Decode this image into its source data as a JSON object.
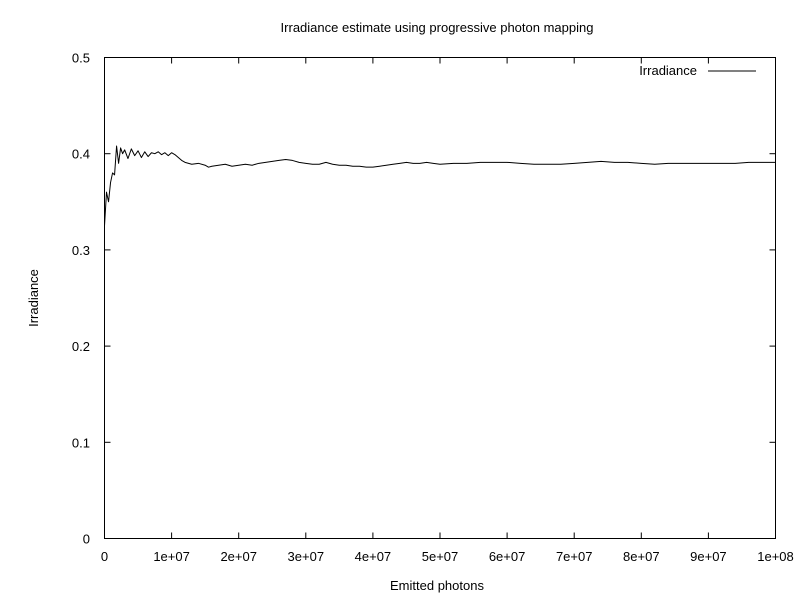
{
  "chart_data": {
    "type": "line",
    "title": "Irradiance estimate using progressive photon mapping",
    "xlabel": "Emitted photons",
    "ylabel": "Irradiance",
    "xlim": [
      0,
      100000000
    ],
    "ylim": [
      0,
      0.5
    ],
    "grid": false,
    "legend": {
      "position": "top-right",
      "entries": [
        "Irradiance"
      ]
    },
    "x_ticks": [
      {
        "value": 0,
        "label": "0"
      },
      {
        "value": 10000000,
        "label": "1e+07"
      },
      {
        "value": 20000000,
        "label": "2e+07"
      },
      {
        "value": 30000000,
        "label": "3e+07"
      },
      {
        "value": 40000000,
        "label": "4e+07"
      },
      {
        "value": 50000000,
        "label": "5e+07"
      },
      {
        "value": 60000000,
        "label": "6e+07"
      },
      {
        "value": 70000000,
        "label": "7e+07"
      },
      {
        "value": 80000000,
        "label": "8e+07"
      },
      {
        "value": 90000000,
        "label": "9e+07"
      },
      {
        "value": 100000000,
        "label": "1e+08"
      }
    ],
    "y_ticks": [
      {
        "value": 0,
        "label": "0"
      },
      {
        "value": 0.1,
        "label": "0.1"
      },
      {
        "value": 0.2,
        "label": "0.2"
      },
      {
        "value": 0.3,
        "label": "0.3"
      },
      {
        "value": 0.4,
        "label": "0.4"
      },
      {
        "value": 0.5,
        "label": "0.5"
      }
    ],
    "series": [
      {
        "name": "Irradiance",
        "color": "#000000",
        "x": [
          0,
          300000,
          600000,
          900000,
          1200000,
          1500000,
          1800000,
          2100000,
          2400000,
          2700000,
          3000000,
          3500000,
          4000000,
          4500000,
          5000000,
          5500000,
          6000000,
          6500000,
          7000000,
          7500000,
          8000000,
          8500000,
          9000000,
          9500000,
          10000000,
          10500000,
          11000000,
          11500000,
          12000000,
          13000000,
          14000000,
          15000000,
          15500000,
          16000000,
          17000000,
          18000000,
          19000000,
          20000000,
          21000000,
          22000000,
          23000000,
          24000000,
          25000000,
          26000000,
          27000000,
          28000000,
          29000000,
          30000000,
          31000000,
          32000000,
          33000000,
          34000000,
          35000000,
          36000000,
          37000000,
          38000000,
          39000000,
          40000000,
          41000000,
          42000000,
          43000000,
          44000000,
          45000000,
          46000000,
          47000000,
          48000000,
          49000000,
          50000000,
          52000000,
          54000000,
          56000000,
          58000000,
          60000000,
          62000000,
          64000000,
          66000000,
          68000000,
          70000000,
          72000000,
          74000000,
          76000000,
          78000000,
          80000000,
          82000000,
          84000000,
          86000000,
          88000000,
          90000000,
          92000000,
          94000000,
          96000000,
          98000000,
          100000000
        ],
        "values": [
          0.325,
          0.36,
          0.35,
          0.37,
          0.38,
          0.378,
          0.408,
          0.39,
          0.406,
          0.4,
          0.404,
          0.395,
          0.405,
          0.398,
          0.403,
          0.396,
          0.402,
          0.397,
          0.401,
          0.4,
          0.402,
          0.399,
          0.401,
          0.398,
          0.401,
          0.399,
          0.396,
          0.393,
          0.391,
          0.389,
          0.39,
          0.388,
          0.386,
          0.387,
          0.388,
          0.389,
          0.387,
          0.388,
          0.389,
          0.388,
          0.39,
          0.391,
          0.392,
          0.393,
          0.394,
          0.393,
          0.391,
          0.39,
          0.389,
          0.389,
          0.391,
          0.389,
          0.388,
          0.388,
          0.387,
          0.387,
          0.386,
          0.386,
          0.387,
          0.388,
          0.389,
          0.39,
          0.391,
          0.39,
          0.39,
          0.391,
          0.39,
          0.389,
          0.39,
          0.39,
          0.391,
          0.391,
          0.391,
          0.39,
          0.389,
          0.389,
          0.389,
          0.39,
          0.391,
          0.392,
          0.391,
          0.391,
          0.39,
          0.389,
          0.39,
          0.39,
          0.39,
          0.39,
          0.39,
          0.39,
          0.391,
          0.391,
          0.391
        ]
      }
    ]
  }
}
